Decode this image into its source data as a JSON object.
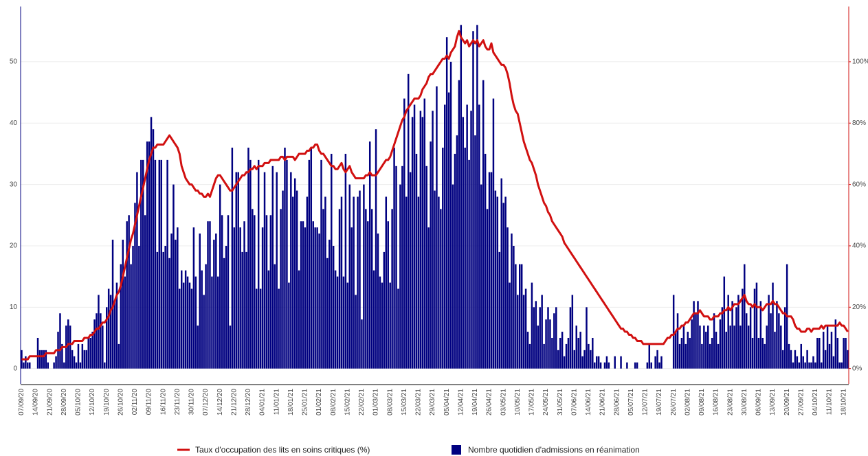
{
  "chart_data": {
    "type": "bar",
    "categories": [
      "07/09/20",
      null,
      null,
      null,
      null,
      null,
      null,
      "14/09/20",
      null,
      null,
      null,
      null,
      null,
      null,
      "21/09/20",
      null,
      null,
      null,
      null,
      null,
      null,
      "28/09/20",
      null,
      null,
      null,
      null,
      null,
      null,
      "05/10/20",
      null,
      null,
      null,
      null,
      null,
      null,
      "12/10/20",
      null,
      null,
      null,
      null,
      null,
      null,
      "19/10/20",
      null,
      null,
      null,
      null,
      null,
      null,
      "26/10/20",
      null,
      null,
      null,
      null,
      null,
      null,
      "02/11/20",
      null,
      null,
      null,
      null,
      null,
      null,
      "09/11/20",
      null,
      null,
      null,
      null,
      null,
      null,
      "16/11/20",
      null,
      null,
      null,
      null,
      null,
      null,
      "23/11/20",
      null,
      null,
      null,
      null,
      null,
      null,
      "30/11/20",
      null,
      null,
      null,
      null,
      null,
      null,
      "07/12/20",
      null,
      null,
      null,
      null,
      null,
      null,
      "14/12/20",
      null,
      null,
      null,
      null,
      null,
      null,
      "21/12/20",
      null,
      null,
      null,
      null,
      null,
      null,
      "28/12/20",
      null,
      null,
      null,
      null,
      null,
      null,
      "04/01/21",
      null,
      null,
      null,
      null,
      null,
      null,
      "11/01/21",
      null,
      null,
      null,
      null,
      null,
      null,
      "18/01/21",
      null,
      null,
      null,
      null,
      null,
      null,
      "25/01/21",
      null,
      null,
      null,
      null,
      null,
      null,
      "01/02/21",
      null,
      null,
      null,
      null,
      null,
      null,
      "08/02/21",
      null,
      null,
      null,
      null,
      null,
      null,
      "15/02/21",
      null,
      null,
      null,
      null,
      null,
      null,
      "22/02/21",
      null,
      null,
      null,
      null,
      null,
      null,
      "01/03/21",
      null,
      null,
      null,
      null,
      null,
      null,
      "08/03/21",
      null,
      null,
      null,
      null,
      null,
      null,
      "15/03/21",
      null,
      null,
      null,
      null,
      null,
      null,
      "22/03/21",
      null,
      null,
      null,
      null,
      null,
      null,
      "29/03/21",
      null,
      null,
      null,
      null,
      null,
      null,
      "05/04/21",
      null,
      null,
      null,
      null,
      null,
      null,
      "12/04/21",
      null,
      null,
      null,
      null,
      null,
      null,
      "19/04/21",
      null,
      null,
      null,
      null,
      null,
      null,
      "26/04/21",
      null,
      null,
      null,
      null,
      null,
      null,
      "03/05/21",
      null,
      null,
      null,
      null,
      null,
      null,
      "10/05/21",
      null,
      null,
      null,
      null,
      null,
      null,
      "17/05/21",
      null,
      null,
      null,
      null,
      null,
      null,
      "24/05/21",
      null,
      null,
      null,
      null,
      null,
      null,
      "31/05/21",
      null,
      null,
      null,
      null,
      null,
      null,
      "07/06/21",
      null,
      null,
      null,
      null,
      null,
      null,
      "14/06/21",
      null,
      null,
      null,
      null,
      null,
      null,
      "21/06/21",
      null,
      null,
      null,
      null,
      null,
      null,
      "28/06/21",
      null,
      null,
      null,
      null,
      null,
      null,
      "05/07/21",
      null,
      null,
      null,
      null,
      null,
      null,
      "12/07/21",
      null,
      null,
      null,
      null,
      null,
      null,
      "19/07/21",
      null,
      null,
      null,
      null,
      null,
      null,
      "26/07/21",
      null,
      null,
      null,
      null,
      null,
      null,
      "02/08/21",
      null,
      null,
      null,
      null,
      null,
      null,
      "09/08/21",
      null,
      null,
      null,
      null,
      null,
      null,
      "16/08/21",
      null,
      null,
      null,
      null,
      null,
      null,
      "23/08/21",
      null,
      null,
      null,
      null,
      null,
      null,
      "30/08/21",
      null,
      null,
      null,
      null,
      null,
      null,
      "06/09/21",
      null,
      null,
      null,
      null,
      null,
      null,
      "13/09/21",
      null,
      null,
      null,
      null,
      null,
      null,
      "20/09/21",
      null,
      null,
      null,
      null,
      null,
      null,
      "27/09/21",
      null,
      null,
      null,
      null,
      null,
      null,
      "04/10/21",
      null,
      null,
      null,
      null,
      null,
      null,
      "11/10/21",
      null,
      null,
      null,
      null,
      null,
      null,
      "18/10/21",
      null,
      null
    ],
    "series": [
      {
        "name": "Taux d'occupation des lits en soins critiques (%)",
        "type": "line",
        "axis": "y2",
        "color": "#d11010",
        "values": [
          3,
          3,
          3,
          3,
          4,
          4,
          4,
          4,
          4,
          4,
          4,
          4,
          5,
          5,
          5,
          5,
          5,
          6,
          6,
          6,
          7,
          7,
          7,
          8,
          8,
          8,
          9,
          9,
          9,
          9,
          9,
          10,
          10,
          10,
          11,
          11,
          12,
          13,
          13,
          14,
          15,
          15,
          16,
          17,
          19,
          20,
          22,
          24,
          25,
          27,
          30,
          33,
          36,
          39,
          42,
          44,
          47,
          50,
          53,
          56,
          59,
          62,
          65,
          68,
          70,
          72,
          72,
          73,
          73,
          73,
          73,
          74,
          75,
          76,
          75,
          74,
          73,
          72,
          70,
          66,
          64,
          62,
          61,
          60,
          60,
          59,
          58,
          58,
          57,
          57,
          56,
          56,
          57,
          56,
          58,
          60,
          62,
          63,
          63,
          62,
          61,
          60,
          59,
          58,
          58,
          59,
          60,
          61,
          62,
          63,
          63,
          64,
          64,
          65,
          65,
          66,
          65,
          66,
          66,
          66,
          67,
          67,
          67,
          68,
          68,
          68,
          68,
          68,
          69,
          69,
          68,
          69,
          69,
          69,
          69,
          68,
          69,
          70,
          70,
          70,
          70,
          71,
          71,
          72,
          72,
          73,
          73,
          71,
          70,
          70,
          69,
          68,
          67,
          66,
          66,
          65,
          65,
          66,
          67,
          65,
          64,
          65,
          66,
          64,
          63,
          62,
          62,
          62,
          62,
          62,
          63,
          63,
          64,
          63,
          63,
          63,
          64,
          65,
          66,
          67,
          68,
          68,
          69,
          71,
          73,
          75,
          77,
          79,
          81,
          82,
          84,
          85,
          86,
          87,
          88,
          88,
          88,
          89,
          91,
          92,
          93,
          95,
          96,
          96,
          97,
          98,
          99,
          100,
          101,
          101,
          102,
          101,
          103,
          104,
          105,
          108,
          110,
          108,
          107,
          106,
          107,
          105,
          106,
          107,
          106,
          107,
          105,
          106,
          107,
          105,
          104,
          104,
          106,
          103,
          102,
          101,
          100,
          99,
          99,
          98,
          96,
          93,
          89,
          86,
          84,
          83,
          80,
          77,
          74,
          72,
          70,
          68,
          67,
          65,
          63,
          60,
          58,
          56,
          54,
          53,
          51,
          50,
          48,
          47,
          46,
          45,
          44,
          43,
          41,
          40,
          39,
          38,
          37,
          36,
          35,
          34,
          33,
          32,
          31,
          30,
          29,
          28,
          27,
          26,
          25,
          24,
          23,
          22,
          21,
          20,
          19,
          18,
          17,
          16,
          15,
          14,
          13,
          13,
          12,
          12,
          11,
          11,
          10,
          10,
          9,
          9,
          9,
          8,
          8,
          8,
          8,
          8,
          8,
          8,
          8,
          8,
          8,
          8,
          9,
          10,
          10,
          11,
          11,
          12,
          13,
          13,
          14,
          14,
          15,
          15,
          16,
          17,
          18,
          18,
          18,
          19,
          18,
          17,
          17,
          17,
          16,
          16,
          17,
          17,
          17,
          18,
          18,
          19,
          19,
          20,
          19,
          20,
          21,
          21,
          21,
          22,
          23,
          24,
          22,
          21,
          21,
          20,
          21,
          20,
          20,
          20,
          19,
          20,
          21,
          21,
          21,
          22,
          21,
          21,
          20,
          19,
          18,
          18,
          17,
          17,
          17,
          16,
          14,
          13,
          13,
          12,
          12,
          12,
          13,
          13,
          12,
          13,
          13,
          13,
          13,
          14,
          13,
          14,
          14,
          14,
          14,
          14,
          14,
          14,
          15,
          14,
          14,
          13,
          12
        ]
      },
      {
        "name": "Nombre quotidien d'admissions en réanimation",
        "type": "bar",
        "color": "#000080",
        "values": [
          3,
          1,
          2,
          1,
          1,
          0,
          0,
          0,
          5,
          3,
          3,
          3,
          3,
          1,
          0,
          0,
          1,
          2,
          6,
          9,
          4,
          1,
          7,
          8,
          7,
          3,
          2,
          1,
          4,
          1,
          4,
          3,
          3,
          5,
          5,
          6,
          8,
          9,
          12,
          9,
          7,
          1,
          10,
          13,
          12,
          21,
          11,
          14,
          4,
          17,
          21,
          15,
          24,
          25,
          17,
          20,
          27,
          32,
          20,
          34,
          34,
          25,
          37,
          37,
          41,
          39,
          34,
          19,
          34,
          34,
          19,
          20,
          34,
          18,
          22,
          30,
          21,
          23,
          13,
          16,
          14,
          16,
          15,
          14,
          13,
          23,
          15,
          7,
          22,
          16,
          12,
          17,
          24,
          24,
          15,
          21,
          22,
          15,
          30,
          25,
          18,
          20,
          25,
          7,
          36,
          23,
          32,
          32,
          23,
          19,
          24,
          19,
          36,
          34,
          26,
          25,
          13,
          34,
          13,
          23,
          32,
          25,
          16,
          25,
          33,
          17,
          32,
          13,
          26,
          29,
          36,
          34,
          14,
          32,
          28,
          31,
          29,
          16,
          24,
          24,
          23,
          28,
          34,
          36,
          24,
          23,
          23,
          22,
          34,
          26,
          28,
          18,
          21,
          35,
          20,
          16,
          15,
          26,
          28,
          15,
          35,
          14,
          30,
          23,
          28,
          12,
          28,
          29,
          8,
          30,
          26,
          24,
          37,
          26,
          16,
          39,
          22,
          15,
          14,
          19,
          28,
          24,
          14,
          26,
          36,
          33,
          13,
          30,
          33,
          44,
          28,
          48,
          32,
          41,
          43,
          35,
          28,
          42,
          41,
          44,
          33,
          23,
          37,
          42,
          29,
          46,
          28,
          26,
          36,
          43,
          54,
          45,
          50,
          30,
          35,
          38,
          47,
          56,
          41,
          36,
          43,
          34,
          42,
          55,
          38,
          56,
          43,
          30,
          47,
          35,
          26,
          32,
          32,
          44,
          29,
          28,
          19,
          31,
          27,
          28,
          23,
          14,
          22,
          20,
          17,
          12,
          17,
          17,
          12,
          13,
          6,
          4,
          14,
          10,
          11,
          7,
          10,
          12,
          4,
          8,
          10,
          8,
          5,
          9,
          10,
          3,
          5,
          6,
          2,
          4,
          5,
          10,
          12,
          3,
          7,
          5,
          6,
          2,
          3,
          10,
          4,
          3,
          5,
          1,
          2,
          2,
          1,
          0,
          1,
          2,
          1,
          0,
          0,
          2,
          0,
          0,
          2,
          0,
          0,
          1,
          0,
          0,
          0,
          1,
          1,
          0,
          0,
          0,
          0,
          1,
          4,
          1,
          0,
          2,
          3,
          1,
          2,
          0,
          0,
          0,
          0,
          0,
          12,
          6,
          9,
          4,
          5,
          7,
          4,
          6,
          5,
          8,
          11,
          9,
          11,
          7,
          4,
          7,
          6,
          7,
          4,
          5,
          9,
          6,
          4,
          8,
          10,
          15,
          6,
          12,
          7,
          11,
          7,
          10,
          12,
          7,
          13,
          17,
          9,
          7,
          10,
          5,
          13,
          14,
          5,
          11,
          5,
          4,
          7,
          12,
          9,
          14,
          6,
          11,
          9,
          7,
          3,
          10,
          17,
          4,
          3,
          1,
          3,
          2,
          1,
          4,
          2,
          1,
          3,
          1,
          1,
          2,
          1,
          5,
          5,
          1,
          6,
          3,
          7,
          4,
          6,
          2,
          8,
          5,
          1,
          1,
          5,
          5,
          3
        ]
      }
    ],
    "ylim": [
      -2.5,
      59
    ],
    "yticks": [
      0,
      10,
      20,
      30,
      40,
      50
    ],
    "y2lim": [
      -5,
      118
    ],
    "y2ticks": [
      {
        "value": 0,
        "label": "0%"
      },
      {
        "value": 20,
        "label": "20%"
      },
      {
        "value": 40,
        "label": "40%"
      },
      {
        "value": 60,
        "label": "60%"
      },
      {
        "value": 80,
        "label": "80%"
      },
      {
        "value": 100,
        "label": "100%"
      }
    ],
    "grid": true,
    "legend": "bottom"
  }
}
